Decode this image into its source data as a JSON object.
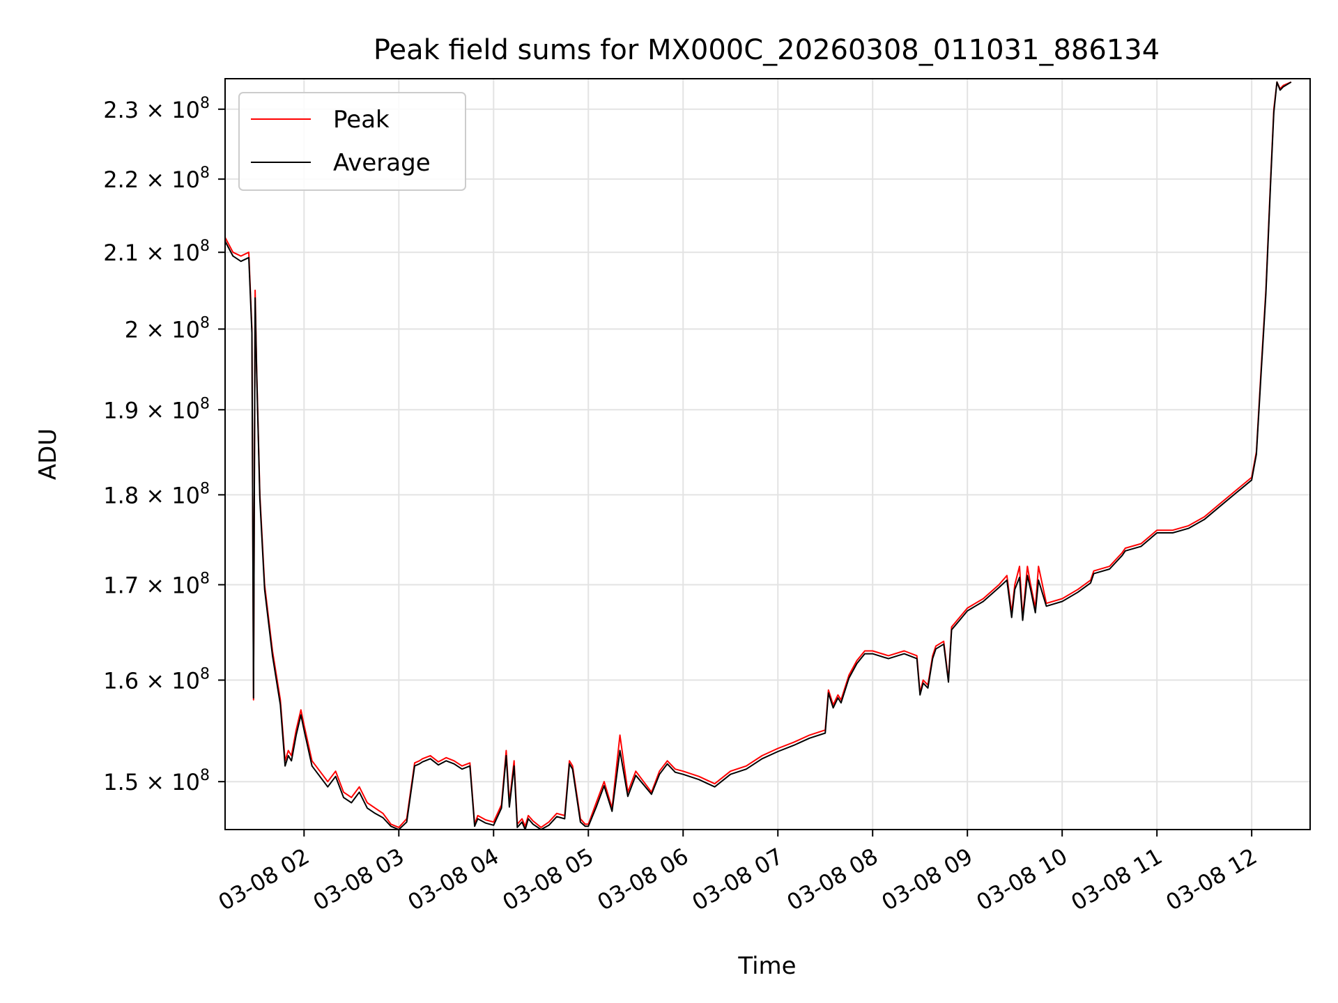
{
  "chart_data": {
    "type": "line",
    "title": "Peak field sums for MX000C_20260308_011031_886134",
    "xlabel": "Time",
    "ylabel": "ADU",
    "y_scale": "log",
    "grid": true,
    "legend_placement": "top-left",
    "xlim": [
      "2026-03-08 01:10",
      "2026-03-08 12:37"
    ],
    "ylim": [
      145500000,
      234500000
    ],
    "x_ticks": [
      "2026-03-08 02:00",
      "2026-03-08 03:00",
      "2026-03-08 04:00",
      "2026-03-08 05:00",
      "2026-03-08 06:00",
      "2026-03-08 07:00",
      "2026-03-08 08:00",
      "2026-03-08 09:00",
      "2026-03-08 10:00",
      "2026-03-08 11:00",
      "2026-03-08 12:00"
    ],
    "x_tick_labels": [
      "03-08 02",
      "03-08 03",
      "03-08 04",
      "03-08 05",
      "03-08 06",
      "03-08 07",
      "03-08 08",
      "03-08 09",
      "03-08 10",
      "03-08 11",
      "03-08 12"
    ],
    "y_ticks": [
      {
        "value": 150000000,
        "mantissa": "1.5",
        "exponent": "8"
      },
      {
        "value": 160000000,
        "mantissa": "1.6",
        "exponent": "8"
      },
      {
        "value": 170000000,
        "mantissa": "1.7",
        "exponent": "8"
      },
      {
        "value": 180000000,
        "mantissa": "1.8",
        "exponent": "8"
      },
      {
        "value": 190000000,
        "mantissa": "1.9",
        "exponent": "8"
      },
      {
        "value": 200000000,
        "mantissa": "2",
        "exponent": "8"
      },
      {
        "value": 210000000,
        "mantissa": "2.1",
        "exponent": "8"
      },
      {
        "value": 220000000,
        "mantissa": "2.2",
        "exponent": "8"
      },
      {
        "value": 230000000,
        "mantissa": "2.3",
        "exponent": "8"
      }
    ],
    "times": [
      "2026-03-08 01:10",
      "2026-03-08 01:15",
      "2026-03-08 01:20",
      "2026-03-08 01:25",
      "2026-03-08 01:27",
      "2026-03-08 01:28",
      "2026-03-08 01:29",
      "2026-03-08 01:30",
      "2026-03-08 01:32",
      "2026-03-08 01:35",
      "2026-03-08 01:40",
      "2026-03-08 01:45",
      "2026-03-08 01:48",
      "2026-03-08 01:50",
      "2026-03-08 01:52",
      "2026-03-08 01:55",
      "2026-03-08 01:58",
      "2026-03-08 02:00",
      "2026-03-08 02:05",
      "2026-03-08 02:10",
      "2026-03-08 02:15",
      "2026-03-08 02:20",
      "2026-03-08 02:25",
      "2026-03-08 02:30",
      "2026-03-08 02:35",
      "2026-03-08 02:40",
      "2026-03-08 02:45",
      "2026-03-08 02:50",
      "2026-03-08 02:55",
      "2026-03-08 03:00",
      "2026-03-08 03:05",
      "2026-03-08 03:10",
      "2026-03-08 03:13",
      "2026-03-08 03:15",
      "2026-03-08 03:20",
      "2026-03-08 03:25",
      "2026-03-08 03:30",
      "2026-03-08 03:35",
      "2026-03-08 03:40",
      "2026-03-08 03:45",
      "2026-03-08 03:48",
      "2026-03-08 03:50",
      "2026-03-08 03:55",
      "2026-03-08 04:00",
      "2026-03-08 04:05",
      "2026-03-08 04:08",
      "2026-03-08 04:10",
      "2026-03-08 04:13",
      "2026-03-08 04:15",
      "2026-03-08 04:18",
      "2026-03-08 04:20",
      "2026-03-08 04:22",
      "2026-03-08 04:25",
      "2026-03-08 04:30",
      "2026-03-08 04:35",
      "2026-03-08 04:40",
      "2026-03-08 04:45",
      "2026-03-08 04:48",
      "2026-03-08 04:50",
      "2026-03-08 04:55",
      "2026-03-08 04:58",
      "2026-03-08 05:00",
      "2026-03-08 05:05",
      "2026-03-08 05:10",
      "2026-03-08 05:15",
      "2026-03-08 05:20",
      "2026-03-08 05:25",
      "2026-03-08 05:30",
      "2026-03-08 05:35",
      "2026-03-08 05:40",
      "2026-03-08 05:45",
      "2026-03-08 05:50",
      "2026-03-08 05:55",
      "2026-03-08 06:00",
      "2026-03-08 06:10",
      "2026-03-08 06:20",
      "2026-03-08 06:30",
      "2026-03-08 06:40",
      "2026-03-08 06:50",
      "2026-03-08 07:00",
      "2026-03-08 07:10",
      "2026-03-08 07:20",
      "2026-03-08 07:30",
      "2026-03-08 07:32",
      "2026-03-08 07:35",
      "2026-03-08 07:38",
      "2026-03-08 07:40",
      "2026-03-08 07:45",
      "2026-03-08 07:50",
      "2026-03-08 07:55",
      "2026-03-08 08:00",
      "2026-03-08 08:10",
      "2026-03-08 08:20",
      "2026-03-08 08:28",
      "2026-03-08 08:30",
      "2026-03-08 08:32",
      "2026-03-08 08:35",
      "2026-03-08 08:38",
      "2026-03-08 08:40",
      "2026-03-08 08:45",
      "2026-03-08 08:48",
      "2026-03-08 08:50",
      "2026-03-08 08:55",
      "2026-03-08 09:00",
      "2026-03-08 09:10",
      "2026-03-08 09:20",
      "2026-03-08 09:25",
      "2026-03-08 09:28",
      "2026-03-08 09:30",
      "2026-03-08 09:33",
      "2026-03-08 09:35",
      "2026-03-08 09:38",
      "2026-03-08 09:40",
      "2026-03-08 09:43",
      "2026-03-08 09:45",
      "2026-03-08 09:50",
      "2026-03-08 10:00",
      "2026-03-08 10:10",
      "2026-03-08 10:18",
      "2026-03-08 10:20",
      "2026-03-08 10:30",
      "2026-03-08 10:38",
      "2026-03-08 10:40",
      "2026-03-08 10:50",
      "2026-03-08 11:00",
      "2026-03-08 11:10",
      "2026-03-08 11:20",
      "2026-03-08 11:30",
      "2026-03-08 11:40",
      "2026-03-08 11:50",
      "2026-03-08 12:00",
      "2026-03-08 12:03",
      "2026-03-08 12:06",
      "2026-03-08 12:09",
      "2026-03-08 12:12",
      "2026-03-08 12:14",
      "2026-03-08 12:16",
      "2026-03-08 12:18",
      "2026-03-08 12:20",
      "2026-03-08 12:25",
      "2026-03-08 12:30",
      "2026-03-08 12:37"
    ],
    "series": [
      {
        "name": "Peak",
        "color": "#ff0000",
        "values": [
          212000000,
          210000000,
          209500000,
          210000000,
          200000000,
          158000000,
          205000000,
          195000000,
          180000000,
          170000000,
          163000000,
          158000000,
          152000000,
          153000000,
          152500000,
          155000000,
          157000000,
          155500000,
          152000000,
          151000000,
          150000000,
          151000000,
          149000000,
          148500000,
          149500000,
          148000000,
          147500000,
          147000000,
          146000000,
          145700000,
          146500000,
          151800000,
          152000000,
          152200000,
          152500000,
          151900000,
          152300000,
          152000000,
          151500000,
          151800000,
          146000000,
          146800000,
          146400000,
          146200000,
          147800000,
          153000000,
          148000000,
          152000000,
          146000000,
          146500000,
          145800000,
          146800000,
          146300000,
          145700000,
          146200000,
          147000000,
          146800000,
          152000000,
          151500000,
          146500000,
          146000000,
          146000000,
          148000000,
          150000000,
          147500000,
          154500000,
          149000000,
          151000000,
          150000000,
          149000000,
          151000000,
          152000000,
          151200000,
          151000000,
          150500000,
          149800000,
          151000000,
          151500000,
          152500000,
          153200000,
          153800000,
          154500000,
          155000000,
          159000000,
          157500000,
          158500000,
          158000000,
          160500000,
          162000000,
          163000000,
          163000000,
          162500000,
          163000000,
          162500000,
          158700000,
          160000000,
          159500000,
          162500000,
          163500000,
          164000000,
          160000000,
          165500000,
          166500000,
          167500000,
          168500000,
          170000000,
          171000000,
          167000000,
          170000000,
          172000000,
          166500000,
          172000000,
          170000000,
          167500000,
          172000000,
          168000000,
          168500000,
          169500000,
          170500000,
          171500000,
          172000000,
          173500000,
          174000000,
          174500000,
          176000000,
          176000000,
          176500000,
          177500000,
          179000000,
          180500000,
          182000000,
          185000000,
          195000000,
          205000000,
          220000000,
          230000000,
          234000000,
          233000000,
          233500000,
          234000000
        ]
      },
      {
        "name": "Average",
        "color": "#000000",
        "values": [
          211500000,
          209500000,
          208800000,
          209300000,
          199500000,
          158200000,
          204000000,
          194500000,
          179500000,
          169500000,
          162500000,
          157500000,
          151500000,
          152500000,
          152000000,
          154500000,
          156500000,
          155000000,
          151500000,
          150500000,
          149500000,
          150500000,
          148500000,
          148000000,
          149000000,
          147500000,
          147000000,
          146600000,
          145800000,
          145500000,
          146200000,
          151500000,
          151700000,
          151900000,
          152200000,
          151600000,
          152000000,
          151700000,
          151200000,
          151500000,
          145800000,
          146500000,
          146100000,
          145900000,
          147500000,
          152500000,
          147600000,
          151500000,
          145700000,
          146200000,
          145500000,
          146500000,
          146000000,
          145500000,
          145900000,
          146700000,
          146500000,
          151700000,
          151200000,
          146200000,
          145800000,
          145800000,
          147600000,
          149600000,
          147200000,
          153000000,
          148600000,
          150600000,
          149700000,
          148800000,
          150700000,
          151700000,
          150900000,
          150700000,
          150200000,
          149500000,
          150700000,
          151200000,
          152200000,
          152900000,
          153500000,
          154200000,
          154700000,
          158700000,
          157200000,
          158200000,
          157700000,
          160200000,
          161700000,
          162700000,
          162700000,
          162200000,
          162700000,
          162200000,
          158500000,
          159700000,
          159200000,
          162200000,
          163200000,
          163700000,
          159800000,
          165200000,
          166200000,
          167200000,
          168200000,
          169700000,
          170500000,
          166500000,
          169500000,
          170800000,
          166200000,
          171000000,
          169500000,
          167000000,
          170500000,
          167700000,
          168200000,
          169200000,
          170200000,
          171200000,
          171700000,
          173200000,
          173700000,
          174200000,
          175700000,
          175700000,
          176200000,
          177200000,
          178700000,
          180200000,
          181700000,
          184700000,
          194500000,
          204500000,
          219500000,
          229500000,
          234000000,
          232800000,
          233300000,
          234000000
        ]
      }
    ]
  }
}
